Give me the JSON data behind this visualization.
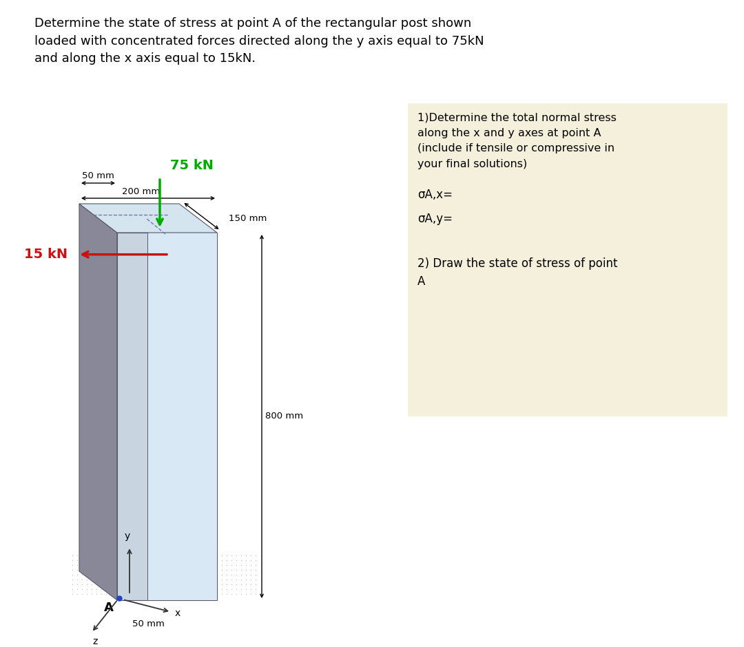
{
  "title_text": "Determine the state of stress at point A of the rectangular post shown\nloaded with concentrated forces directed along the y axis equal to 75kN\nand along the x axis equal to 15kN.",
  "title_fontsize": 13,
  "box_color": "#F5F0DC",
  "box_text_1": "1)Determine the total normal stress\nalong the x and y axes at point A\n(include if tensile or compressive in\nyour final solutions)",
  "box_sigma_x": "σA,x=",
  "box_sigma_y": "σA,y=",
  "box_text_2": "2) Draw the state of stress of point\nA",
  "force_75kN_label": "75 kN",
  "force_15kN_label": "15 kN",
  "dim_50mm_top": "50 mm",
  "dim_200mm": "200 mm",
  "dim_150mm": "150 mm",
  "dim_800mm": "800 mm",
  "dim_50mm_bot": "50 mm",
  "point_A_label": "A",
  "axis_x": "x",
  "axis_y": "y",
  "axis_z": "z",
  "post_front_color": "#C8D4E0",
  "post_right_color": "#9AAABB",
  "post_left_color": "#888898",
  "post_top_color": "#D5E5F0",
  "post_inner_color": "#B8CEDE",
  "edge_color": "#555566",
  "green_color": "#00AA00",
  "red_color": "#CC1111",
  "dot_color": "#BBBBBB",
  "axis_color": "#333333",
  "point_color": "#2244CC"
}
